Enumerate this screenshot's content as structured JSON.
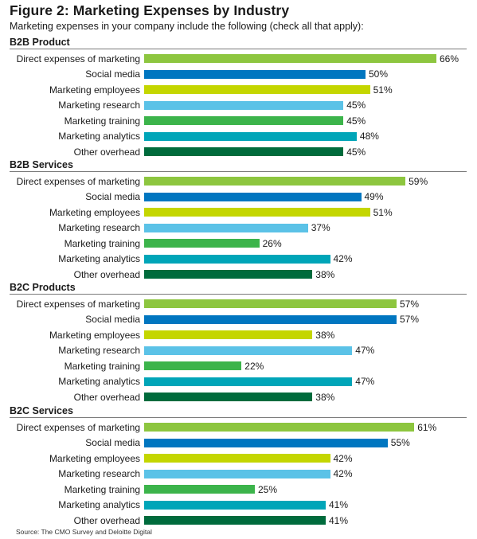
{
  "chart_data": {
    "type": "bar",
    "orientation": "horizontal",
    "title": "Figure 2: Marketing Expenses by Industry",
    "subtitle": "Marketing expenses in your company include the following (check all that apply):",
    "source": "Source: The CMO Survey and Deloitte Digital",
    "value_suffix": "%",
    "xlim": [
      0,
      66
    ],
    "grid": false,
    "legend": "none",
    "categories": [
      "Direct expenses of marketing",
      "Social media",
      "Marketing employees",
      "Marketing research",
      "Marketing training",
      "Marketing analytics",
      "Other overhead"
    ],
    "category_colors": [
      "#8dc63f",
      "#0076c0",
      "#c4d600",
      "#5bc2e7",
      "#3cb44b",
      "#00a5b8",
      "#006b3c"
    ],
    "groups": [
      {
        "title": "B2B Product",
        "values": [
          66,
          50,
          51,
          45,
          45,
          48,
          45
        ]
      },
      {
        "title": "B2B Services",
        "values": [
          59,
          49,
          51,
          37,
          26,
          42,
          38
        ]
      },
      {
        "title": "B2C Products",
        "values": [
          57,
          57,
          38,
          47,
          22,
          47,
          38
        ]
      },
      {
        "title": "B2C Services",
        "values": [
          61,
          55,
          42,
          42,
          25,
          41,
          41
        ]
      }
    ]
  }
}
